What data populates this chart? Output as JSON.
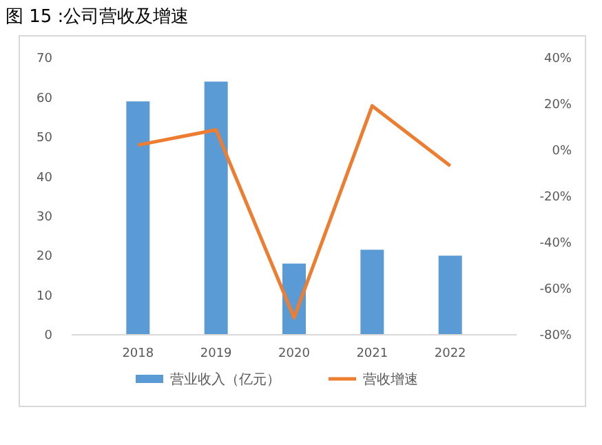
{
  "chart_data": {
    "type": "bar",
    "title": "图 15 :公司营收及增速",
    "categories": [
      "2018",
      "2019",
      "2020",
      "2021",
      "2022"
    ],
    "series": [
      {
        "name": "营业收入（亿元）",
        "color": "#5b9bd5",
        "values": [
          59,
          64,
          18,
          21.5,
          20
        ]
      },
      {
        "name": "营收增速",
        "type": "line",
        "axis": "y2",
        "color": "#ed7d31",
        "values": [
          2.2,
          8.8,
          -72.6,
          19.2,
          -6.8
        ]
      }
    ],
    "ylim": [
      0,
      70
    ],
    "yticks": [
      0,
      10,
      20,
      30,
      40,
      50,
      60,
      70
    ],
    "y2lim": [
      -80,
      40
    ],
    "y2ticks": [
      {
        "value": -80,
        "label": "-80%"
      },
      {
        "value": -60,
        "label": "-60%"
      },
      {
        "value": -40,
        "label": "-40%"
      },
      {
        "value": -20,
        "label": "-20%"
      },
      {
        "value": 0,
        "label": "0%"
      },
      {
        "value": 20,
        "label": "20%"
      },
      {
        "value": 40,
        "label": "40%"
      }
    ],
    "grid": false,
    "legend": "bottom",
    "marker": "none",
    "line_style": "solid"
  }
}
